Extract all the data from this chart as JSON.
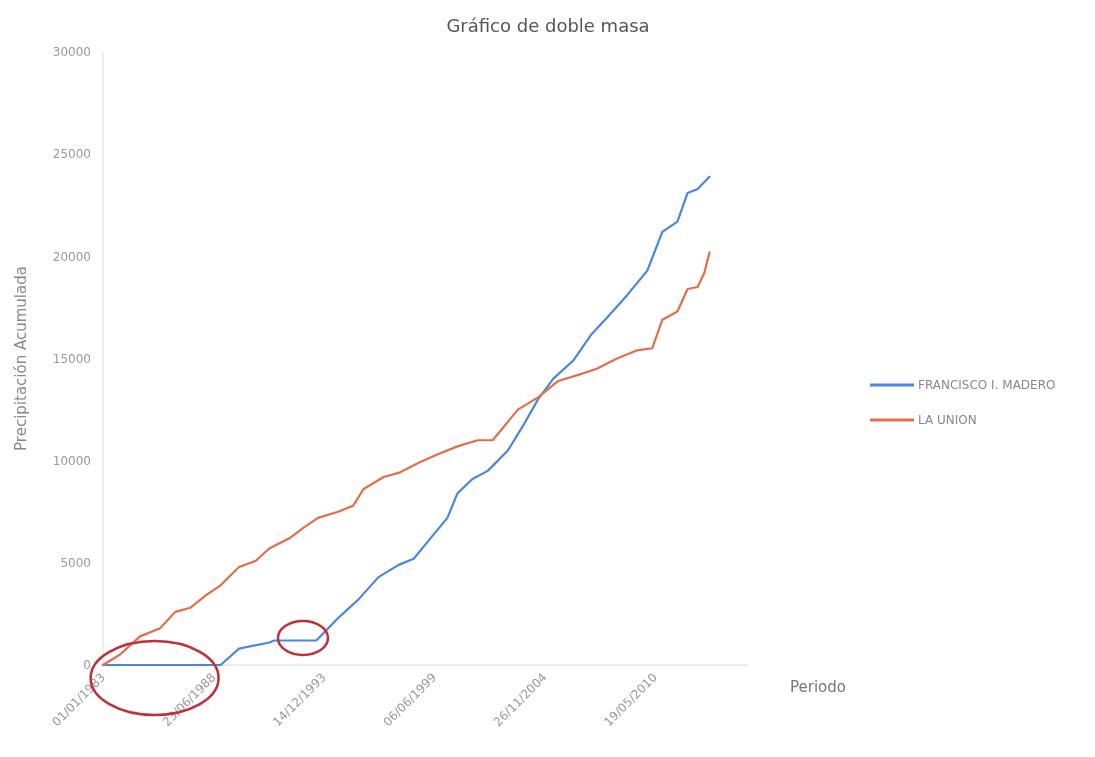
{
  "chart_data": {
    "type": "line",
    "title": "Gráfico de doble masa",
    "xlabel": "Periodo",
    "ylabel": "Precipitación Acumulada",
    "legend": "right",
    "xlim": [
      "1983-01-01",
      "2014-12-31"
    ],
    "ylim": [
      0,
      30000
    ],
    "yticks": [
      0,
      5000,
      10000,
      15000,
      20000,
      25000,
      30000
    ],
    "xticks": [
      {
        "value": "1983-01-01",
        "label": "01/01/1983"
      },
      {
        "value": "1988-06-23",
        "label": "23/06/1988"
      },
      {
        "value": "1993-12-14",
        "label": "14/12/1993"
      },
      {
        "value": "1999-06-06",
        "label": "06/06/1999"
      },
      {
        "value": "2004-11-26",
        "label": "26/11/2004"
      },
      {
        "value": "2010-05-19",
        "label": "19/05/2010"
      }
    ],
    "series": [
      {
        "name": "FRANCISCO I. MADERO",
        "color": "#4a86e0",
        "x": [
          "1983-01",
          "1988-11",
          "1989-10",
          "1991-04",
          "1991-07",
          "1993-08",
          "1994-09",
          "1995-09",
          "1996-09",
          "1997-09",
          "1998-06",
          "1999-03",
          "2000-02",
          "2000-08",
          "2001-05",
          "2002-02",
          "2003-02",
          "2003-11",
          "2004-08",
          "2005-05",
          "2006-05",
          "2007-04",
          "2008-01",
          "2009-01",
          "2010-01",
          "2010-10",
          "2011-07",
          "2012-01",
          "2012-07",
          "2013-02"
        ],
        "values": [
          0,
          0,
          800,
          1100,
          1200,
          1200,
          2300,
          3200,
          4300,
          4900,
          5200,
          6100,
          7200,
          8400,
          9100,
          9500,
          10500,
          11700,
          13000,
          14000,
          14900,
          16200,
          17000,
          18100,
          19300,
          21200,
          21700,
          23100,
          23300,
          23900
        ]
      },
      {
        "name": "LA UNION",
        "color": "#e0704a",
        "x": [
          "1983-01",
          "1983-11",
          "1984-11",
          "1985-11",
          "1986-08",
          "1987-05",
          "1988-02",
          "1988-11",
          "1989-10",
          "1990-08",
          "1991-04",
          "1992-04",
          "1992-12",
          "1993-09",
          "1994-09",
          "1995-06",
          "1995-12",
          "1996-12",
          "1997-09",
          "1998-09",
          "1999-08",
          "2000-08",
          "2001-08",
          "2002-05",
          "2002-11",
          "2003-08",
          "2004-08",
          "2005-08",
          "2006-08",
          "2007-07",
          "2008-07",
          "2009-07",
          "2010-04",
          "2010-10",
          "2011-07",
          "2012-01",
          "2012-07",
          "2012-11",
          "2013-02"
        ],
        "values": [
          0,
          500,
          1400,
          1800,
          2600,
          2800,
          3400,
          3900,
          4800,
          5100,
          5700,
          6200,
          6700,
          7200,
          7500,
          7800,
          8600,
          9200,
          9400,
          9900,
          10300,
          10700,
          11000,
          11000,
          11600,
          12500,
          13100,
          13900,
          14200,
          14500,
          15000,
          15400,
          15500,
          16900,
          17300,
          18400,
          18500,
          19200,
          20200
        ]
      }
    ]
  }
}
